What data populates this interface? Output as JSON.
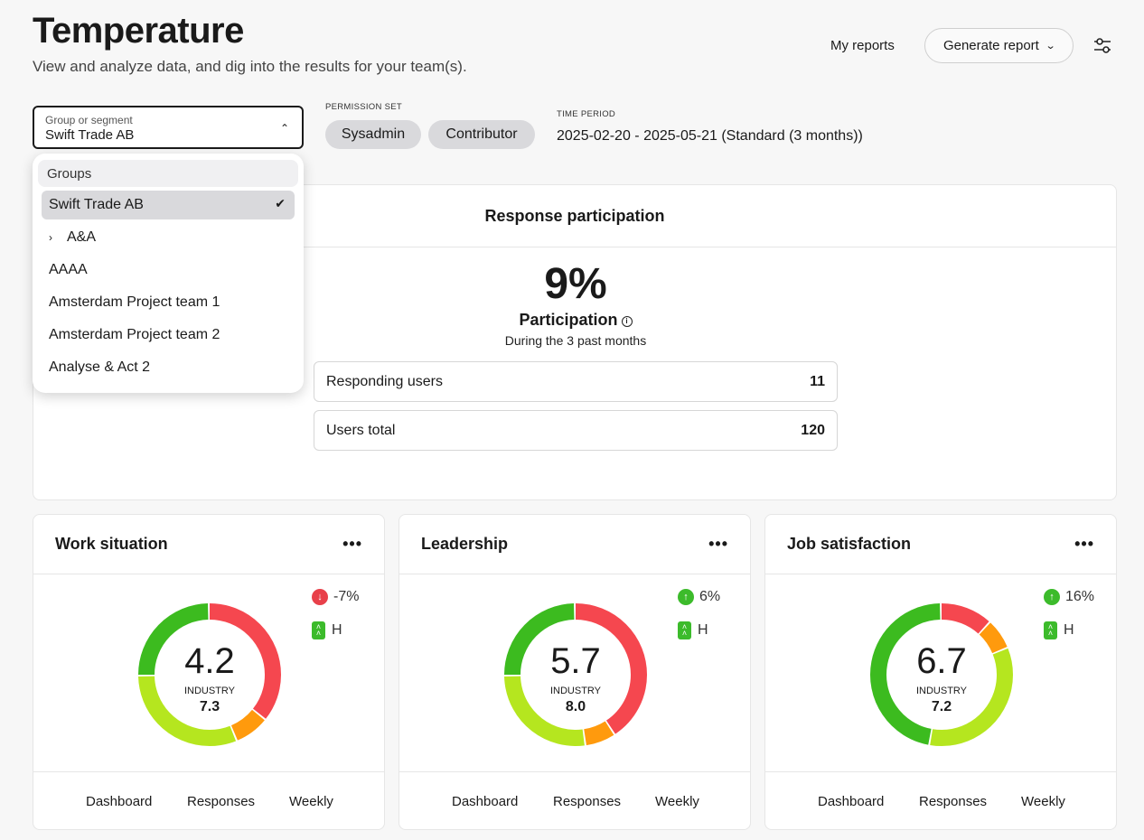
{
  "header": {
    "title": "Temperature",
    "subtitle": "View and analyze data, and dig into the results for your team(s).",
    "my_reports": "My reports",
    "generate_report": "Generate report"
  },
  "filters": {
    "group_label": "Group or segment",
    "group_value": "Swift Trade AB",
    "permission_label": "PERMISSION SET",
    "permissions": [
      "Sysadmin",
      "Contributor"
    ],
    "time_label": "TIME PERIOD",
    "time_value": "2025-02-20 - 2025-05-21 (Standard (3 months))"
  },
  "dropdown": {
    "header": "Groups",
    "items": [
      {
        "label": "Swift Trade AB",
        "selected": true
      },
      {
        "label": "A&A",
        "expandable": true
      },
      {
        "label": "AAAA"
      },
      {
        "label": "Amsterdam Project team 1"
      },
      {
        "label": "Amsterdam Project team 2"
      },
      {
        "label": "Analyse & Act 2"
      }
    ]
  },
  "participation": {
    "title": "Response participation",
    "percent": "9%",
    "label": "Participation",
    "sub": "During the 3 past months",
    "rows": [
      {
        "label": "Responding users",
        "value": "11"
      },
      {
        "label": "Users total",
        "value": "120"
      }
    ]
  },
  "colors": {
    "red": "#f5474f",
    "orange": "#ff9a0d",
    "lime": "#b5e61f",
    "green": "#3cbb1f",
    "trend_down": "#e8404a",
    "trend_up": "#3cbb2b"
  },
  "metrics": [
    {
      "title": "Work situation",
      "score": "4.2",
      "industry_label": "INDUSTRY",
      "industry": "7.3",
      "trend": "-7%",
      "trend_dir": "down",
      "badge": "H",
      "distribution": {
        "red": 0.36,
        "orange": 0.08,
        "lime": 0.31,
        "green": 0.25
      },
      "links": [
        "Dashboard",
        "Responses",
        "Weekly"
      ]
    },
    {
      "title": "Leadership",
      "score": "5.7",
      "industry_label": "INDUSTRY",
      "industry": "8.0",
      "trend": "6%",
      "trend_dir": "up",
      "badge": "H",
      "distribution": {
        "red": 0.41,
        "orange": 0.07,
        "lime": 0.27,
        "green": 0.25
      },
      "links": [
        "Dashboard",
        "Responses",
        "Weekly"
      ]
    },
    {
      "title": "Job satisfaction",
      "score": "6.7",
      "industry_label": "INDUSTRY",
      "industry": "7.2",
      "trend": "16%",
      "trend_dir": "up",
      "badge": "H",
      "distribution": {
        "red": 0.12,
        "orange": 0.07,
        "lime": 0.34,
        "green": 0.47
      },
      "links": [
        "Dashboard",
        "Responses",
        "Weekly"
      ]
    }
  ]
}
